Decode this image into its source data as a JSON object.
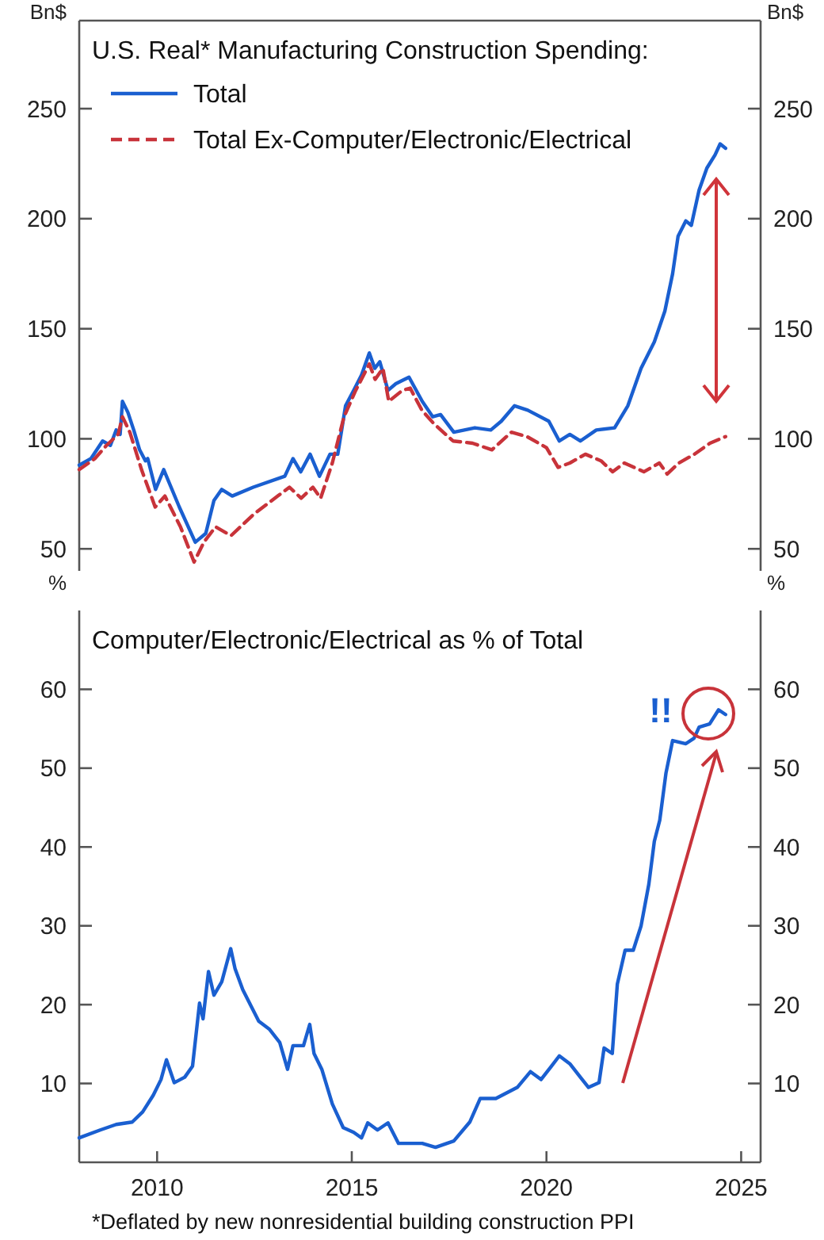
{
  "chart_data": [
    {
      "type": "line",
      "title": "U.S. Real* Manufacturing Construction Spending:",
      "ylabel": "Bn$",
      "y2label": "Bn$",
      "legend": "top left",
      "tick_labels": "y",
      "xlim": [
        2008,
        2025.5
      ],
      "ylim": [
        40,
        290
      ],
      "yticks": [
        50,
        100,
        150,
        200,
        250
      ],
      "y2lim": [
        40,
        290
      ],
      "y2ticks": [
        50,
        100,
        150,
        200,
        250
      ],
      "series": [
        {
          "name": "Total",
          "color": "#1a5fd0",
          "line_style": "solid",
          "x": [
            2008.0,
            2008.3,
            2008.6,
            2008.8,
            2008.95,
            2009.05,
            2009.11,
            2009.25,
            2009.4,
            2009.55,
            2009.7,
            2009.76,
            2009.96,
            2010.17,
            2010.57,
            2010.98,
            2011.25,
            2011.46,
            2011.66,
            2011.93,
            2012.47,
            2013.28,
            2013.49,
            2013.69,
            2013.93,
            2014.17,
            2014.44,
            2014.64,
            2014.84,
            2015.05,
            2015.25,
            2015.45,
            2015.59,
            2015.72,
            2015.93,
            2016.13,
            2016.47,
            2016.81,
            2017.08,
            2017.28,
            2017.62,
            2018.16,
            2018.57,
            2018.84,
            2019.18,
            2019.52,
            2020.06,
            2020.33,
            2020.6,
            2020.87,
            2021.28,
            2021.75,
            2022.09,
            2022.43,
            2022.77,
            2023.04,
            2023.24,
            2023.38,
            2023.58,
            2023.72,
            2023.92,
            2024.12,
            2024.33,
            2024.46,
            2024.6
          ],
          "values": [
            88,
            91,
            99,
            97,
            104,
            102,
            117,
            112,
            104,
            95,
            90,
            91,
            77,
            86,
            69,
            53,
            57,
            72,
            77,
            74,
            78,
            83,
            91,
            85,
            93,
            83,
            93,
            93,
            115,
            122,
            129,
            139,
            132,
            135,
            122,
            125,
            128,
            117,
            110,
            111,
            103,
            105,
            104,
            108,
            115,
            113,
            108,
            99,
            102,
            99,
            104,
            105,
            115,
            132,
            144,
            158,
            175,
            192,
            199,
            197,
            213,
            223,
            229,
            234,
            232
          ]
        },
        {
          "name": "Total Ex-Computer/Electronic/Electrical",
          "color": "#c8333a",
          "line_style": "dashed",
          "x": [
            2008.0,
            2008.4,
            2008.7,
            2009.0,
            2009.11,
            2009.3,
            2009.6,
            2009.95,
            2010.2,
            2010.6,
            2010.95,
            2011.2,
            2011.5,
            2011.9,
            2012.5,
            2013.1,
            2013.4,
            2013.7,
            2014.0,
            2014.2,
            2014.5,
            2014.8,
            2015.1,
            2015.45,
            2015.6,
            2015.8,
            2015.95,
            2016.3,
            2016.5,
            2016.8,
            2017.1,
            2017.6,
            2018.1,
            2018.6,
            2019.1,
            2019.5,
            2020.0,
            2020.3,
            2020.6,
            2021.0,
            2021.4,
            2021.7,
            2022.0,
            2022.5,
            2022.9,
            2023.1,
            2023.4,
            2023.8,
            2024.2,
            2024.6
          ],
          "values": [
            86,
            91,
            97,
            102,
            110,
            103,
            86,
            69,
            74,
            60,
            44,
            53,
            60,
            56,
            66,
            74,
            78,
            73,
            78,
            73,
            89,
            110,
            122,
            134,
            127,
            132,
            117,
            122,
            123,
            113,
            107,
            99,
            98,
            95,
            103,
            101,
            96,
            87,
            89,
            93,
            90,
            85,
            89,
            85,
            89,
            84,
            89,
            93,
            98,
            101
          ]
        }
      ]
    },
    {
      "type": "line",
      "title": "Computer/Electronic/Electrical as % of Total",
      "ylabel": "%",
      "y2label": "%",
      "legend": false,
      "xlim": [
        2008,
        2025.5
      ],
      "xticks": [
        2010,
        2015,
        2020,
        2025
      ],
      "ylim": [
        0,
        70
      ],
      "yticks": [
        10,
        20,
        30,
        40,
        50,
        60
      ],
      "y2lim": [
        0,
        70
      ],
      "y2ticks": [
        10,
        20,
        30,
        40,
        50,
        60
      ],
      "annotations": [
        "!!",
        "*Deflated by new nonresidential building construction PPI"
      ],
      "series": [
        {
          "color": "#1a5fd0",
          "line_style": "solid",
          "x": [
            2008.0,
            2008.54,
            2008.95,
            2009.36,
            2009.63,
            2009.9,
            2010.1,
            2010.24,
            2010.44,
            2010.71,
            2010.91,
            2011.09,
            2011.18,
            2011.32,
            2011.46,
            2011.66,
            2011.89,
            2012.0,
            2012.2,
            2012.61,
            2012.88,
            2013.15,
            2013.35,
            2013.49,
            2013.76,
            2013.92,
            2014.03,
            2014.23,
            2014.5,
            2014.78,
            2015.05,
            2015.25,
            2015.41,
            2015.66,
            2015.93,
            2016.2,
            2016.81,
            2017.15,
            2017.62,
            2018.03,
            2018.3,
            2018.7,
            2019.25,
            2019.59,
            2019.86,
            2020.13,
            2020.33,
            2020.6,
            2020.87,
            2021.08,
            2021.35,
            2021.48,
            2021.69,
            2021.82,
            2022.02,
            2022.23,
            2022.43,
            2022.63,
            2022.77,
            2022.91,
            2023.07,
            2023.24,
            2023.58,
            2023.79,
            2023.92,
            2024.19,
            2024.42,
            2024.6
          ],
          "values": [
            3.1,
            4.1,
            4.8,
            5.1,
            6.4,
            8.5,
            10.5,
            13,
            10.1,
            10.8,
            12.2,
            20.2,
            18.2,
            24.2,
            21.2,
            22.9,
            27.1,
            24.6,
            21.9,
            17.9,
            16.9,
            15.2,
            11.8,
            14.8,
            14.8,
            17.5,
            13.8,
            11.8,
            7.4,
            4.4,
            3.8,
            3.1,
            5,
            4.1,
            5,
            2.4,
            2.4,
            1.9,
            2.7,
            5.1,
            8.1,
            8.1,
            9.5,
            11.5,
            10.5,
            12.2,
            13.5,
            12.5,
            10.8,
            9.5,
            10.1,
            14.5,
            13.8,
            22.6,
            26.9,
            26.9,
            30,
            35.3,
            40.7,
            43.4,
            49.4,
            53.5,
            53.1,
            53.8,
            55.2,
            55.6,
            57.4,
            56.8
          ]
        }
      ]
    }
  ]
}
